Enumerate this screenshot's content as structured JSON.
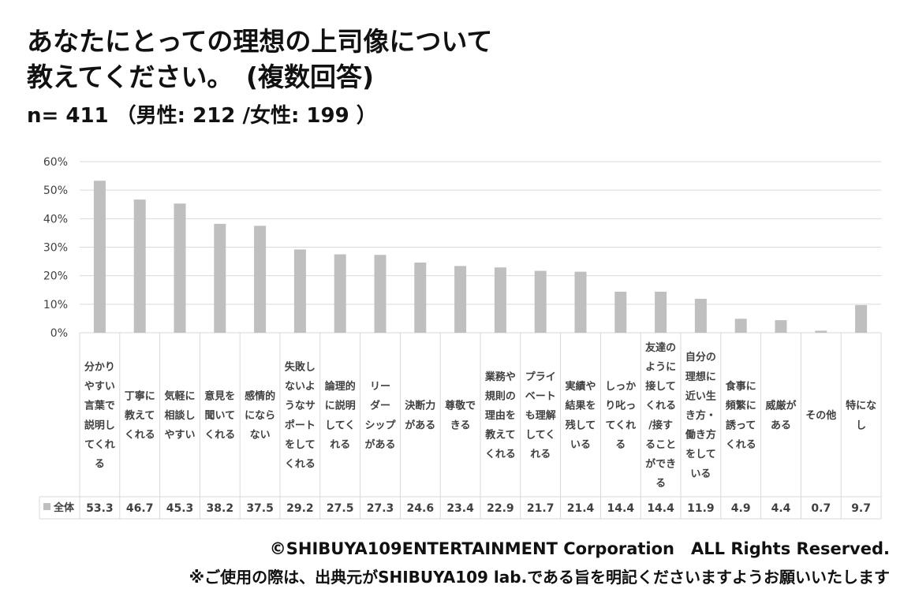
{
  "header": {
    "title_line1": "あなたにとっての理想の上司像について",
    "title_line2": "教えてください。　(複数回答)",
    "sample": "n= 411 （男性: 212 /女性: 199 ）"
  },
  "footer": {
    "copyright": "©SHIBUYA109ENTERTAINMENT Corporation　ALL Rights Reserved.",
    "note": "※ご使用の際は、出典元がSHIBUYA109 lab.である旨を明記くださいますようお願いいたします"
  },
  "colors": {
    "bar": "#bfbfbf",
    "grid": "#d9d9d9",
    "text": "#404040"
  },
  "chart_data": {
    "type": "bar",
    "ylim": [
      0,
      60
    ],
    "y_ticks": [
      "0%",
      "10%",
      "20%",
      "30%",
      "40%",
      "50%",
      "60%"
    ],
    "grid": true,
    "legend_position": "table-left",
    "categories": [
      [
        "分かり",
        "やすい",
        "言葉で",
        "説明し",
        "てくれ",
        "る"
      ],
      [
        "丁寧に",
        "教えて",
        "くれる"
      ],
      [
        "気軽に",
        "相談し",
        "やすい"
      ],
      [
        "意見を",
        "聞いて",
        "くれる"
      ],
      [
        "感情的",
        "になら",
        "ない"
      ],
      [
        "失敗し",
        "ないよ",
        "うなサ",
        "ポート",
        "をして",
        "くれる"
      ],
      [
        "論理的",
        "に説明",
        "してく",
        "れる"
      ],
      [
        "リー",
        "ダー",
        "シップ",
        "がある"
      ],
      [
        "決断力",
        "がある"
      ],
      [
        "尊敬で",
        "きる"
      ],
      [
        "業務や",
        "規則の",
        "理由を",
        "教えて",
        "くれる"
      ],
      [
        "プライ",
        "ベート",
        "も理解",
        "してく",
        "れる"
      ],
      [
        "実績や",
        "結果を",
        "残して",
        "いる"
      ],
      [
        "しっか",
        "り叱っ",
        "てくれ",
        "る"
      ],
      [
        "友達の",
        "ように",
        "接して",
        "くれる",
        "/接す",
        "ること",
        "ができ",
        "る"
      ],
      [
        "自分の",
        "理想に",
        "近い生",
        "き方・",
        "働き方",
        "をして",
        "いる"
      ],
      [
        "食事に",
        "頻繁に",
        "誘って",
        "くれる"
      ],
      [
        "威厳が",
        "ある"
      ],
      [
        "その他"
      ],
      [
        "特にな",
        "し"
      ]
    ],
    "series": [
      {
        "name": "全体",
        "values": [
          53.3,
          46.7,
          45.3,
          38.2,
          37.5,
          29.2,
          27.5,
          27.3,
          24.6,
          23.4,
          22.9,
          21.7,
          21.4,
          14.4,
          14.4,
          11.9,
          4.9,
          4.4,
          0.7,
          9.7
        ],
        "labels": [
          "53.3",
          "46.7",
          "45.3",
          "38.2",
          "37.5",
          "29.2",
          "27.5",
          "27.3",
          "24.6",
          "23.4",
          "22.9",
          "21.7",
          "21.4",
          "14.4",
          "14.4",
          "11.9",
          "4.9",
          "4.4",
          "0.7",
          "9.7"
        ]
      }
    ]
  }
}
